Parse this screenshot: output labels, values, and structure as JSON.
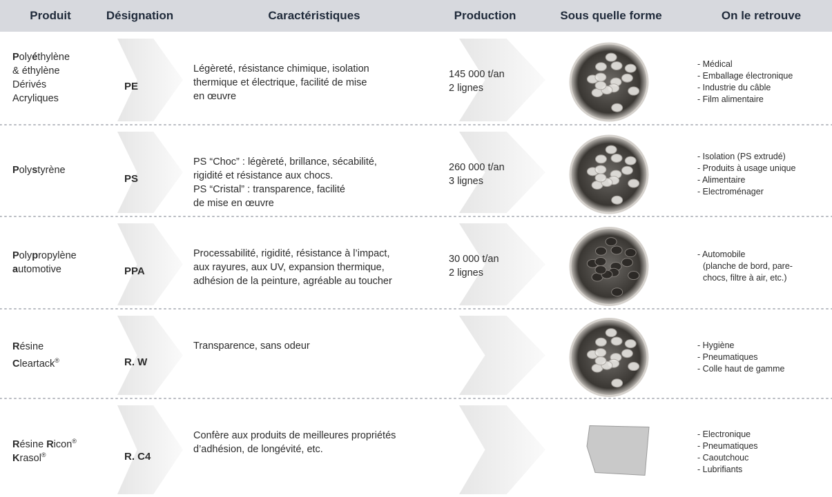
{
  "header": [
    "Produit",
    "Désignation",
    "Caractéristiques",
    "Production",
    "Sous quelle forme",
    "On le retrouve"
  ],
  "rows": [
    {
      "product": [
        [
          {
            "text": "P",
            "bold": true
          },
          {
            "text": "oly"
          },
          {
            "text": "é",
            "bold": true
          },
          {
            "text": "thylène"
          }
        ],
        [
          {
            "text": "& éthylène"
          }
        ],
        [
          {
            "text": "Dérivés"
          }
        ],
        [
          {
            "text": "Acryliques"
          }
        ]
      ],
      "designation": "PE",
      "characteristics": [
        "Légèreté, résistance chimique, isolation",
        "thermique et électrique, facilité de mise",
        "en œuvre"
      ],
      "production": [
        "145 000 t/an",
        "2 lignes"
      ],
      "uses": [
        "- Médical",
        "- Emballage électronique",
        "- Industrie du câble",
        "- Film alimentaire"
      ]
    },
    {
      "product": [
        [
          {
            "text": "P",
            "bold": true
          },
          {
            "text": "oly"
          },
          {
            "text": "s",
            "bold": true
          },
          {
            "text": "tyrène"
          }
        ]
      ],
      "designation": "PS",
      "characteristics": [
        "PS “Choc” : légèreté, brillance, sécabilité,",
        "rigidité et résistance aux chocs.",
        "PS “Cristal” : transparence, facilité",
        "de mise en œuvre"
      ],
      "production": [
        "260 000 t/an",
        "3 lignes"
      ],
      "uses": [
        "- Isolation (PS extrudé)",
        "- Produits à usage unique",
        "- Alimentaire",
        "- Electroménager"
      ]
    },
    {
      "product": [
        [
          {
            "text": "P",
            "bold": true
          },
          {
            "text": "oly"
          },
          {
            "text": "p",
            "bold": true
          },
          {
            "text": "ropylène"
          }
        ],
        [
          {
            "text": "a",
            "bold": true
          },
          {
            "text": "utomotive"
          }
        ]
      ],
      "designation": "PPA",
      "characteristics": [
        "Processabilité, rigidité, résistance à l’impact,",
        "aux rayures, aux UV, expansion thermique,",
        "adhésion de la peinture, agréable au toucher"
      ],
      "production": [
        "30 000 t/an",
        "2 lignes"
      ],
      "uses": [
        "- Automobile",
        "(planche de bord, pare-",
        "chocs, filtre à air, etc.)"
      ]
    },
    {
      "product": [
        [
          {
            "text": "R",
            "bold": true
          },
          {
            "text": "ésine"
          }
        ],
        [
          {
            "text": "C",
            "bold": true
          },
          {
            "text": "leartack"
          },
          {
            "text": "®",
            "sup": true
          }
        ]
      ],
      "designation": "R. W",
      "characteristics": [
        "Transparence, sans odeur"
      ],
      "uses": [
        "- Hygiène",
        "- Pneumatiques",
        "- Colle haut de gamme"
      ]
    },
    {
      "product": [
        [
          {
            "text": "R",
            "bold": true
          },
          {
            "text": "ésine "
          },
          {
            "text": "R",
            "bold": true
          },
          {
            "text": "icon"
          },
          {
            "text": "®",
            "sup": true
          }
        ],
        [
          {
            "text": "K",
            "bold": true
          },
          {
            "text": "rasol"
          },
          {
            "text": "®",
            "sup": true
          }
        ]
      ],
      "designation": "R. C4",
      "characteristics": [
        "Confère aux produits de meilleures propriétés",
        "d’adhésion, de longévité, etc."
      ],
      "uses": [
        "- Electronique",
        "- Pneumatiques",
        "- Caoutchouc",
        "- Lubrifiants"
      ]
    }
  ]
}
